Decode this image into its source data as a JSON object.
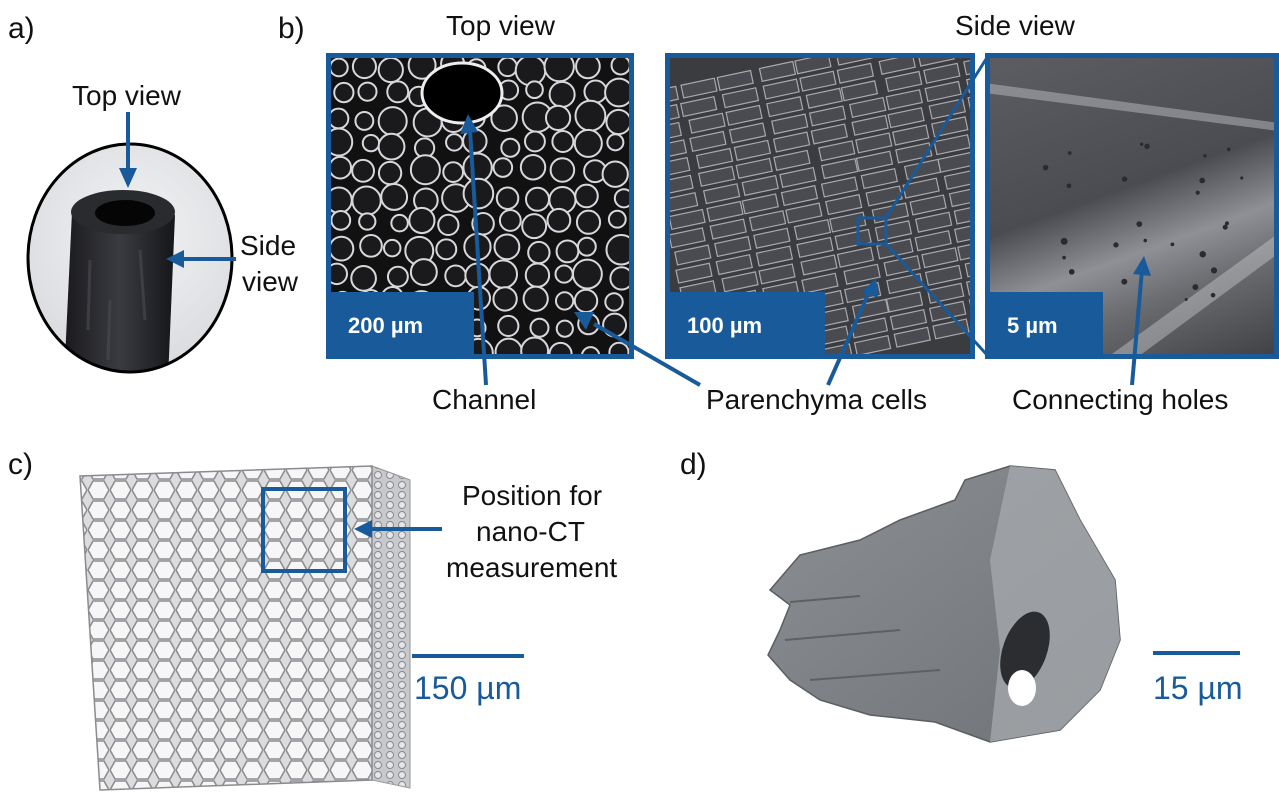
{
  "panel_labels": {
    "a": "a)",
    "b": "b)",
    "c": "c)",
    "d": "d)"
  },
  "panel_a": {
    "top_view": "Top view",
    "side_view_line1": "Side",
    "side_view_line2": "view"
  },
  "panel_b": {
    "top_view_title": "Top view",
    "side_view_title": "Side view",
    "scale_200": "200 µm",
    "scale_100": "100 µm",
    "scale_5": "5 µm",
    "channel": "Channel",
    "parenchyma": "Parenchyma cells",
    "connecting": "Connecting holes"
  },
  "panel_c": {
    "pos_line1": "Position for",
    "pos_line2": "nano-CT",
    "pos_line3": "measurement",
    "scale": "150 µm"
  },
  "panel_d": {
    "scale": "15 µm"
  },
  "colors": {
    "accent": "#185a9a"
  }
}
